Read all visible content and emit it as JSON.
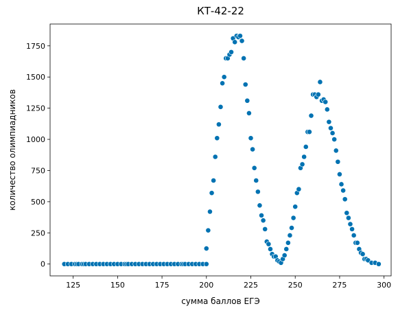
{
  "chart_data": {
    "type": "scatter",
    "title": "КТ-42-22",
    "xlabel": "сумма баллов ЕГЭ",
    "ylabel": "количество олимпиадников",
    "xlim": [
      112,
      304
    ],
    "ylim": [
      -95,
      1925
    ],
    "xticks": [
      125,
      150,
      175,
      200,
      225,
      250,
      275,
      300
    ],
    "yticks": [
      0,
      250,
      500,
      750,
      1000,
      1250,
      1500,
      1750
    ],
    "grid": false,
    "marker_color": "#0072b2",
    "series": [
      {
        "points": [
          [
            120,
            0
          ],
          [
            122,
            0
          ],
          [
            124,
            0
          ],
          [
            126,
            0
          ],
          [
            127,
            0
          ],
          [
            128,
            0
          ],
          [
            130,
            0
          ],
          [
            131,
            0
          ],
          [
            132,
            0
          ],
          [
            134,
            0
          ],
          [
            136,
            0
          ],
          [
            138,
            0
          ],
          [
            140,
            0
          ],
          [
            142,
            0
          ],
          [
            144,
            0
          ],
          [
            146,
            0
          ],
          [
            148,
            0
          ],
          [
            150,
            0
          ],
          [
            152,
            0
          ],
          [
            154,
            0
          ],
          [
            155,
            0
          ],
          [
            156,
            0
          ],
          [
            158,
            0
          ],
          [
            160,
            0
          ],
          [
            162,
            0
          ],
          [
            164,
            0
          ],
          [
            166,
            0
          ],
          [
            168,
            0
          ],
          [
            170,
            0
          ],
          [
            172,
            0
          ],
          [
            174,
            0
          ],
          [
            176,
            0
          ],
          [
            178,
            0
          ],
          [
            180,
            0
          ],
          [
            182,
            0
          ],
          [
            184,
            0
          ],
          [
            186,
            0
          ],
          [
            187,
            0
          ],
          [
            188,
            0
          ],
          [
            190,
            0
          ],
          [
            192,
            0
          ],
          [
            194,
            0
          ],
          [
            196,
            0
          ],
          [
            198,
            0
          ],
          [
            200,
            0
          ],
          [
            200,
            125
          ],
          [
            201,
            270
          ],
          [
            202,
            420
          ],
          [
            203,
            570
          ],
          [
            204,
            670
          ],
          [
            205,
            860
          ],
          [
            206,
            1010
          ],
          [
            207,
            1120
          ],
          [
            208,
            1260
          ],
          [
            209,
            1450
          ],
          [
            210,
            1500
          ],
          [
            211,
            1650
          ],
          [
            212,
            1650
          ],
          [
            213,
            1680
          ],
          [
            214,
            1700
          ],
          [
            215,
            1810
          ],
          [
            216,
            1780
          ],
          [
            217,
            1830
          ],
          [
            218,
            1820
          ],
          [
            219,
            1830
          ],
          [
            220,
            1790
          ],
          [
            221,
            1650
          ],
          [
            222,
            1440
          ],
          [
            223,
            1310
          ],
          [
            224,
            1210
          ],
          [
            225,
            1010
          ],
          [
            226,
            920
          ],
          [
            227,
            770
          ],
          [
            228,
            670
          ],
          [
            229,
            580
          ],
          [
            230,
            470
          ],
          [
            231,
            390
          ],
          [
            232,
            350
          ],
          [
            233,
            280
          ],
          [
            234,
            180
          ],
          [
            235,
            160
          ],
          [
            236,
            120
          ],
          [
            237,
            80
          ],
          [
            238,
            60
          ],
          [
            239,
            60
          ],
          [
            240,
            30
          ],
          [
            241,
            20
          ],
          [
            242,
            10
          ],
          [
            243,
            40
          ],
          [
            244,
            70
          ],
          [
            245,
            120
          ],
          [
            246,
            170
          ],
          [
            247,
            230
          ],
          [
            248,
            290
          ],
          [
            249,
            370
          ],
          [
            250,
            460
          ],
          [
            251,
            570
          ],
          [
            252,
            600
          ],
          [
            253,
            770
          ],
          [
            254,
            800
          ],
          [
            255,
            860
          ],
          [
            256,
            940
          ],
          [
            257,
            1060
          ],
          [
            258,
            1060
          ],
          [
            259,
            1190
          ],
          [
            260,
            1360
          ],
          [
            261,
            1360
          ],
          [
            262,
            1340
          ],
          [
            263,
            1360
          ],
          [
            264,
            1460
          ],
          [
            265,
            1310
          ],
          [
            266,
            1320
          ],
          [
            267,
            1300
          ],
          [
            268,
            1240
          ],
          [
            269,
            1140
          ],
          [
            270,
            1090
          ],
          [
            271,
            1050
          ],
          [
            272,
            1000
          ],
          [
            273,
            910
          ],
          [
            274,
            820
          ],
          [
            275,
            720
          ],
          [
            276,
            640
          ],
          [
            277,
            590
          ],
          [
            278,
            520
          ],
          [
            279,
            410
          ],
          [
            280,
            370
          ],
          [
            281,
            320
          ],
          [
            282,
            280
          ],
          [
            283,
            230
          ],
          [
            284,
            170
          ],
          [
            285,
            170
          ],
          [
            286,
            120
          ],
          [
            287,
            90
          ],
          [
            288,
            80
          ],
          [
            289,
            40
          ],
          [
            290,
            40
          ],
          [
            291,
            30
          ],
          [
            293,
            10
          ],
          [
            295,
            10
          ],
          [
            297,
            0
          ]
        ]
      }
    ]
  }
}
